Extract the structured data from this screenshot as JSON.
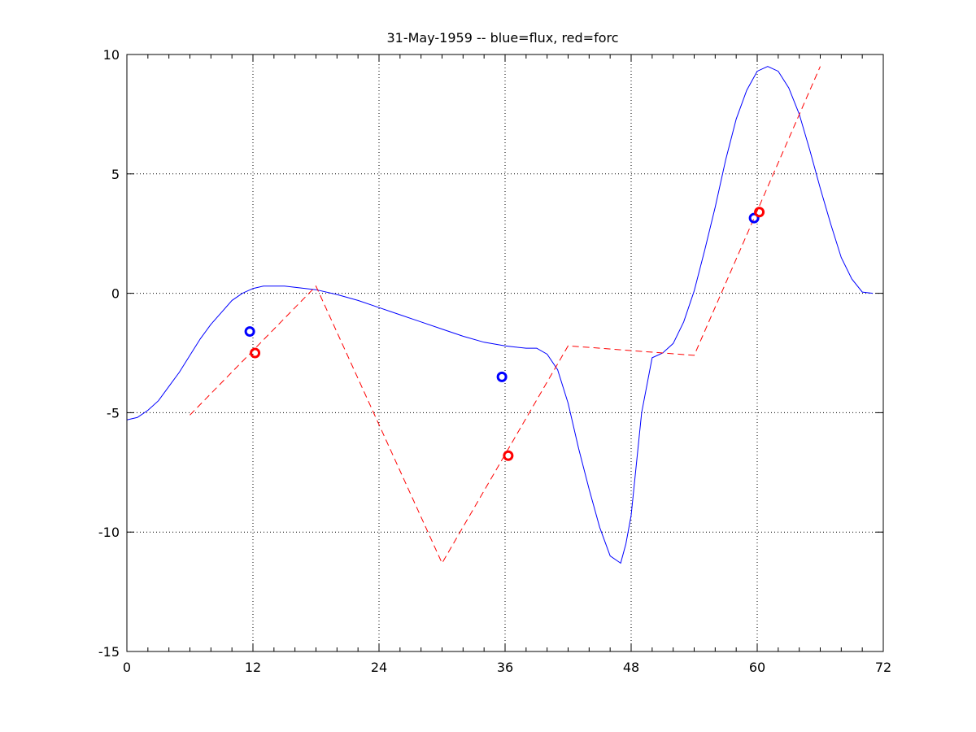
{
  "chart_data": {
    "type": "line",
    "title": "31-May-1959 -- blue=flux, red=forc",
    "xlabel": "",
    "ylabel": "",
    "xlim": [
      0,
      72
    ],
    "ylim": [
      -15,
      10
    ],
    "xticks": [
      0,
      12,
      24,
      36,
      48,
      60,
      72
    ],
    "yticks": [
      -15,
      -10,
      -5,
      0,
      5,
      10
    ],
    "xtick_labels": [
      "0",
      "12",
      "24",
      "36",
      "48",
      "60",
      "72"
    ],
    "ytick_labels": [
      "-15",
      "-10",
      "-5",
      "0",
      "5",
      "10"
    ],
    "grid": true,
    "series": [
      {
        "color": "#0000ff",
        "style": "solid",
        "x": [
          0,
          1,
          2,
          3,
          4,
          5,
          6,
          7,
          8,
          9,
          10,
          11,
          12,
          13,
          14,
          15,
          16,
          17,
          18,
          20,
          22,
          24,
          26,
          28,
          30,
          32,
          34,
          36,
          37,
          38,
          39,
          40,
          41,
          42,
          43,
          44,
          45,
          46,
          47,
          47.5,
          48,
          49,
          50,
          51,
          52,
          53,
          54,
          55,
          56,
          57,
          58,
          59,
          60,
          61,
          62,
          63,
          64,
          65,
          66,
          67,
          68,
          69,
          70,
          71
        ],
        "y": [
          -5.3,
          -5.2,
          -4.9,
          -4.5,
          -3.9,
          -3.3,
          -2.6,
          -1.9,
          -1.3,
          -0.8,
          -0.3,
          0.0,
          0.2,
          0.3,
          0.3,
          0.3,
          0.25,
          0.2,
          0.15,
          -0.05,
          -0.3,
          -0.6,
          -0.9,
          -1.2,
          -1.5,
          -1.8,
          -2.05,
          -2.2,
          -2.25,
          -2.3,
          -2.3,
          -2.55,
          -3.2,
          -4.6,
          -6.5,
          -8.2,
          -9.8,
          -11.0,
          -11.3,
          -10.5,
          -9.3,
          -5.0,
          -2.7,
          -2.5,
          -2.1,
          -1.2,
          0.1,
          1.8,
          3.6,
          5.6,
          7.3,
          8.5,
          9.3,
          9.5,
          9.3,
          8.6,
          7.5,
          6.0,
          4.4,
          2.9,
          1.5,
          0.6,
          0.05,
          0.0
        ]
      },
      {
        "color": "#ff0000",
        "style": "dashed",
        "x": [
          6,
          18,
          30,
          42,
          54,
          66
        ],
        "y": [
          -5.1,
          0.3,
          -11.3,
          -2.2,
          -2.6,
          9.5
        ]
      }
    ],
    "markers": [
      {
        "x": 11.7,
        "y": -1.6,
        "color": "#0000ff"
      },
      {
        "x": 12.2,
        "y": -2.5,
        "color": "#ff0000"
      },
      {
        "x": 35.7,
        "y": -3.5,
        "color": "#0000ff"
      },
      {
        "x": 36.3,
        "y": -6.8,
        "color": "#ff0000"
      },
      {
        "x": 59.7,
        "y": 3.15,
        "color": "#0000ff"
      },
      {
        "x": 60.2,
        "y": 3.4,
        "color": "#ff0000"
      }
    ]
  }
}
